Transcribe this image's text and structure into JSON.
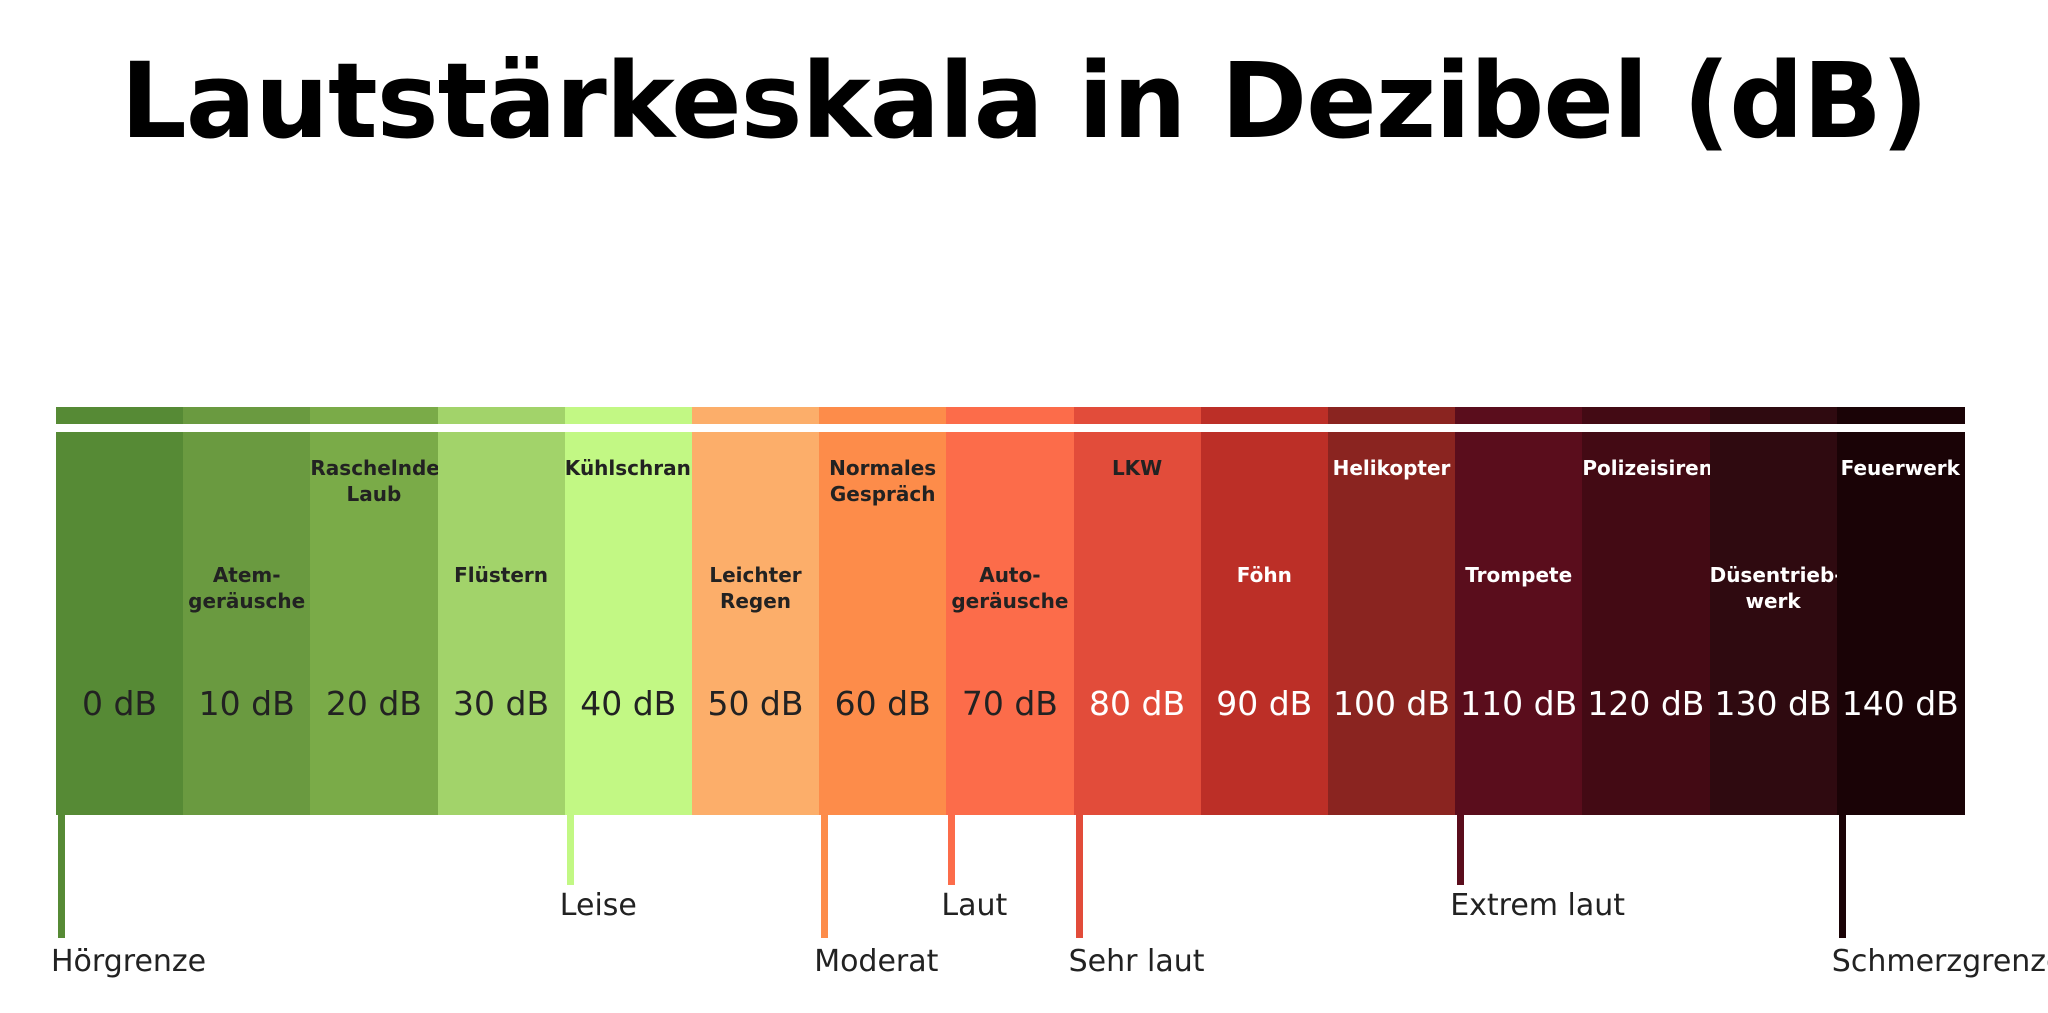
{
  "title": "Lautstärkeskala in Dezibel (dB)",
  "levels": [
    {
      "db": "0 dB",
      "color": "#568a35"
    },
    {
      "label": "Atem-\ngeräusche",
      "db": "10 dB",
      "color": "#6a9a40"
    },
    {
      "label": "Raschelndes\nLaub",
      "db": "20 dB",
      "color": "#7aab48"
    },
    {
      "label": "Flüstern",
      "db": "30 dB",
      "color": "#a2d36a"
    },
    {
      "label": "Kühlschrank",
      "db": "40 dB",
      "color": "#c2f884"
    },
    {
      "label": "Leichter\nRegen",
      "db": "50 dB",
      "color": "#fcae6a"
    },
    {
      "label": "Normales\nGespräch",
      "db": "60 dB",
      "color": "#fd8c4a"
    },
    {
      "label": "Auto-\ngeräusche",
      "db": "70 dB",
      "color": "#fc6c4a"
    },
    {
      "label": "LKW",
      "db": "80 dB",
      "color": "#e24c3a"
    },
    {
      "label": "Föhn",
      "db": "90 dB",
      "color": "#bc2f27"
    },
    {
      "label": "Helikopter",
      "db": "100 dB",
      "color": "#8a2420"
    },
    {
      "label": "Trompete",
      "db": "110 dB",
      "color": "#5a0d1c"
    },
    {
      "label": "Polizeisirene",
      "db": "120 dB",
      "color": "#430a14"
    },
    {
      "label": "Düsentrieb-\nwerk",
      "db": "130 dB",
      "color": "#2f0a10"
    },
    {
      "label": "Feuerwerk",
      "db": "140 dB",
      "color": "#1a0306"
    }
  ],
  "thresholds": [
    {
      "label": "Hörgrenze",
      "level": 0
    },
    {
      "label": "Leise",
      "level": 4
    },
    {
      "label": "Moderat",
      "level": 6
    },
    {
      "label": "Laut",
      "level": 7
    },
    {
      "label": "Sehr laut",
      "level": 8
    },
    {
      "label": "Extrem laut",
      "level": 11
    },
    {
      "label": "Schmerzgrenze",
      "level": 14
    }
  ]
}
